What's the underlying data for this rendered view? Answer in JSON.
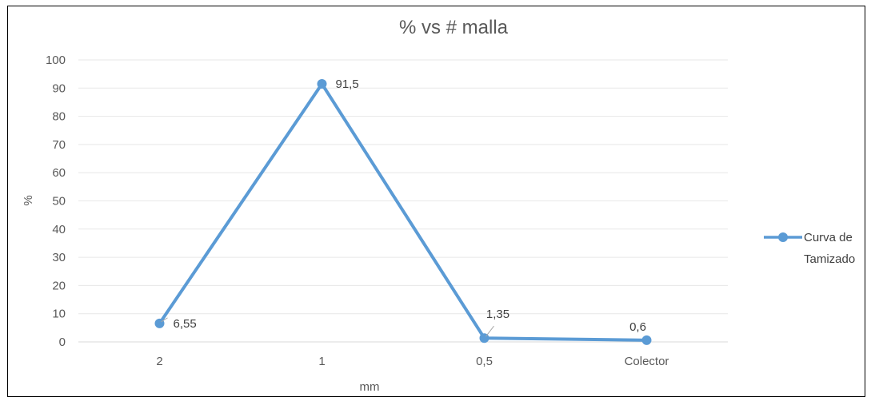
{
  "chart_data": {
    "type": "line",
    "title": "% vs # malla",
    "xlabel": "mm",
    "ylabel": "%",
    "categories": [
      "2",
      "1",
      "0,5",
      "Colector"
    ],
    "series": [
      {
        "name": "Curva de Tamizado",
        "values": [
          6.55,
          91.5,
          1.35,
          0.6
        ],
        "labels": [
          "6,55",
          "91,5",
          "1,35",
          "0,6"
        ],
        "color": "#5B9BD5"
      }
    ],
    "ylim": [
      0,
      100
    ],
    "yticks": [
      "0",
      "10",
      "20",
      "30",
      "40",
      "50",
      "60",
      "70",
      "80",
      "90",
      "100"
    ],
    "grid": true,
    "legend": "right",
    "legend_lines": [
      "Curva de",
      "Tamizado"
    ]
  }
}
